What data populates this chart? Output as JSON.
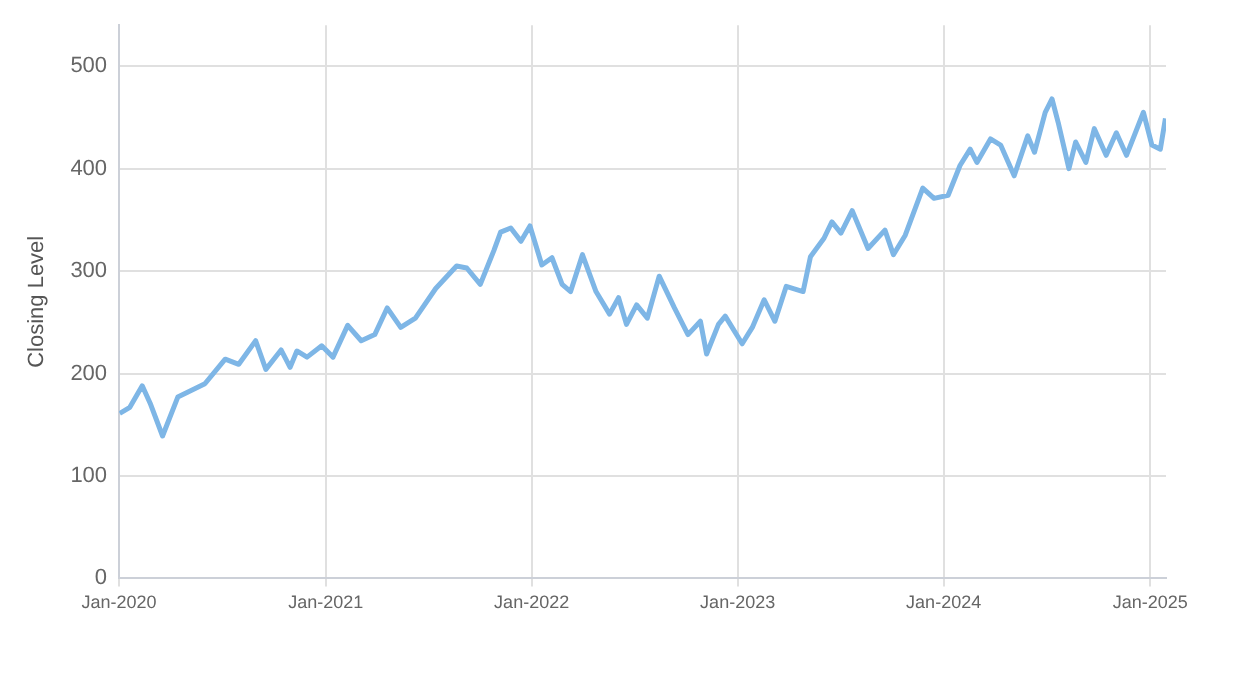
{
  "chart_data": {
    "type": "line",
    "ylabel": "Closing Level",
    "xlim": [
      "2020-01-01",
      "2025-01-29"
    ],
    "ylim": [
      0,
      540
    ],
    "yticks": [
      0,
      100,
      200,
      300,
      400,
      500
    ],
    "xticks": [
      {
        "value": "2020-01-01",
        "label": "Jan-2020"
      },
      {
        "value": "2021-01-01",
        "label": "Jan-2021"
      },
      {
        "value": "2022-01-01",
        "label": "Jan-2022"
      },
      {
        "value": "2023-01-01",
        "label": "Jan-2023"
      },
      {
        "value": "2024-01-01",
        "label": "Jan-2024"
      },
      {
        "value": "2025-01-01",
        "label": "Jan-2025"
      }
    ],
    "grid": true,
    "marker": "none",
    "line_style": "solid",
    "legend": false,
    "series": [
      {
        "color": "#7eb6e6",
        "x": [
          "2020-01-02",
          "2020-01-20",
          "2020-02-11",
          "2020-02-25",
          "2020-03-18",
          "2020-04-14",
          "2020-06-01",
          "2020-07-07",
          "2020-07-31",
          "2020-08-30",
          "2020-09-17",
          "2020-10-14",
          "2020-10-30",
          "2020-11-11",
          "2020-11-29",
          "2020-12-25",
          "2021-01-14",
          "2021-02-09",
          "2021-03-05",
          "2021-03-29",
          "2021-04-20",
          "2021-05-14",
          "2021-06-09",
          "2021-07-15",
          "2021-08-21",
          "2021-09-08",
          "2021-10-02",
          "2021-10-26",
          "2021-11-07",
          "2021-11-25",
          "2021-12-13",
          "2021-12-29",
          "2022-01-19",
          "2022-02-06",
          "2022-02-24",
          "2022-03-11",
          "2022-04-01",
          "2022-04-25",
          "2022-05-19",
          "2022-06-04",
          "2022-06-18",
          "2022-07-06",
          "2022-07-25",
          "2022-08-15",
          "2022-09-11",
          "2022-10-05",
          "2022-10-27",
          "2022-11-07",
          "2022-11-28",
          "2022-12-10",
          "2023-01-09",
          "2023-01-27",
          "2023-02-17",
          "2023-03-08",
          "2023-03-28",
          "2023-04-27",
          "2023-05-10",
          "2023-06-03",
          "2023-06-17",
          "2023-07-03",
          "2023-07-23",
          "2023-08-20",
          "2023-09-19",
          "2023-10-04",
          "2023-10-25",
          "2023-11-25",
          "2023-12-15",
          "2024-01-09",
          "2024-01-30",
          "2024-02-17",
          "2024-02-29",
          "2024-03-24",
          "2024-04-11",
          "2024-05-05",
          "2024-05-29",
          "2024-06-10",
          "2024-06-29",
          "2024-07-11",
          "2024-07-22",
          "2024-08-10",
          "2024-08-22",
          "2024-09-09",
          "2024-09-24",
          "2024-10-15",
          "2024-11-02",
          "2024-11-20",
          "2024-12-20",
          "2025-01-04",
          "2025-01-19",
          "2025-01-28"
        ],
        "values": [
          161,
          167,
          188,
          171,
          139,
          177,
          190,
          214,
          209,
          232,
          204,
          223,
          206,
          222,
          216,
          227,
          216,
          247,
          232,
          238,
          264,
          245,
          254,
          283,
          305,
          303,
          287,
          320,
          338,
          342,
          329,
          344,
          306,
          313,
          287,
          280,
          316,
          280,
          258,
          274,
          248,
          267,
          254,
          295,
          264,
          238,
          251,
          219,
          248,
          256,
          229,
          245,
          272,
          251,
          285,
          280,
          314,
          332,
          348,
          337,
          359,
          322,
          340,
          316,
          335,
          381,
          371,
          374,
          403,
          419,
          406,
          429,
          423,
          393,
          432,
          416,
          455,
          468,
          445,
          400,
          426,
          406,
          439,
          413,
          435,
          413,
          455,
          423,
          419,
          449
        ]
      }
    ]
  }
}
